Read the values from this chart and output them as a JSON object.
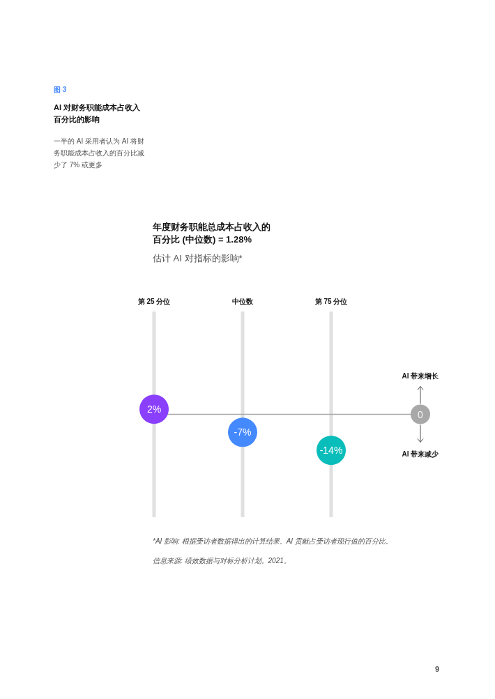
{
  "chart_data": {
    "type": "scatter",
    "title": "AI 对财务职能成本占收入百分比的影响",
    "subtitle": "一半的 AI 采用者认为 AI 将财务职能成本占收入的百分比减少了 7% 或更多",
    "categories": [
      "第 25 分位",
      "中位数",
      "第 75 分位"
    ],
    "values": [
      2,
      -7,
      -14
    ],
    "colors": [
      "#8a3ffc",
      "#4589ff",
      "#08bdba"
    ],
    "value_labels": [
      "2%",
      "-7%",
      "-14%"
    ],
    "marker": "circle",
    "ylim": [
      -40,
      40
    ],
    "tick_labels": "x",
    "grid": "x",
    "ref_lines": [
      {
        "axis": "y",
        "value": 0,
        "label": "0",
        "color": "#a8a8a8"
      }
    ],
    "annotations": [
      "图 3",
      "年度财务职能总成本占收入的百分比 (中位数) = 1.28%",
      "估计 AI 对指标的影响*",
      "*AI 影响: 根据受访者数据得出的计算结果。AI 贡献占受访者现行值的百分比。",
      "信息来源: 绩效数据与对标分析计划。2021。",
      "9",
      "AI 带来增长",
      "AI 带来减少"
    ]
  }
}
